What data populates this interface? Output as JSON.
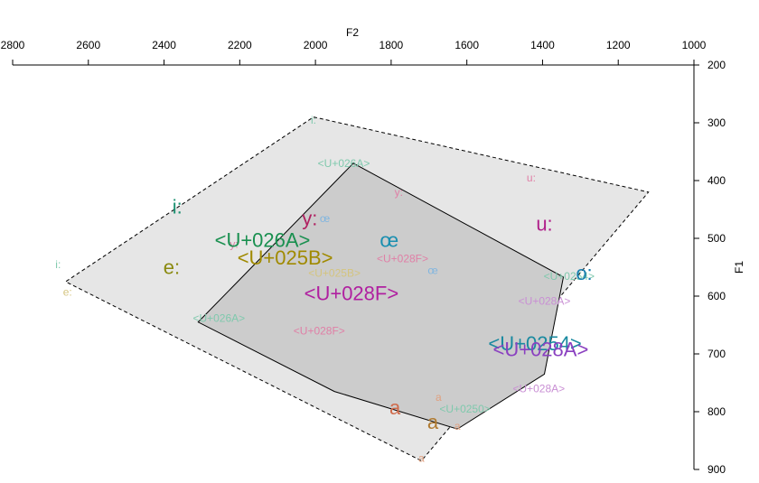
{
  "chart_data": {
    "type": "scatter",
    "title": "",
    "xlabel": "F2",
    "ylabel": "F1",
    "xaxis": {
      "reversed": true,
      "position": "top",
      "range": [
        2800,
        1000
      ],
      "ticks": [
        2800,
        2600,
        2400,
        2200,
        2000,
        1800,
        1600,
        1400,
        1200,
        1000
      ]
    },
    "yaxis": {
      "reversed": true,
      "position": "right",
      "range": [
        200,
        900
      ],
      "ticks": [
        200,
        300,
        400,
        500,
        600,
        700,
        800,
        900
      ]
    },
    "grid": false,
    "polygons": [
      {
        "name": "outer",
        "style": "dashed",
        "fill": "#e6e6e6",
        "stroke": "#000000",
        "points": [
          [
            2005,
            290
          ],
          [
            1120,
            420
          ],
          [
            1720,
            885
          ],
          [
            2660,
            575
          ]
        ]
      },
      {
        "name": "inner",
        "style": "solid",
        "fill": "#cccccc",
        "stroke": "#000000",
        "points": [
          [
            1900,
            370
          ],
          [
            1345,
            567
          ],
          [
            1395,
            735
          ],
          [
            1625,
            830
          ],
          [
            1950,
            765
          ],
          [
            2310,
            645
          ]
        ]
      }
    ],
    "points": [
      {
        "label": "i:",
        "f2": 2005,
        "f1": 295,
        "color": "#7fc9ad",
        "size": 12
      },
      {
        "label": "<U+026A>",
        "f2": 1925,
        "f1": 370,
        "color": "#7fc9ad",
        "size": 12
      },
      {
        "label": "y:",
        "f2": 1780,
        "f1": 420,
        "color": "#e07fa6",
        "size": 12
      },
      {
        "label": "u:",
        "f2": 1430,
        "f1": 395,
        "color": "#e07fa6",
        "size": 12
      },
      {
        "label": "œ",
        "f2": 1975,
        "f1": 465,
        "color": "#7fb5e0",
        "size": 12
      },
      {
        "label": "y:",
        "f2": 2215,
        "f1": 510,
        "color": "#e07fa6",
        "size": 12
      },
      {
        "label": "<U+028F>",
        "f2": 1770,
        "f1": 535,
        "color": "#e07fa6",
        "size": 12
      },
      {
        "label": "<U+025B>",
        "f2": 1950,
        "f1": 560,
        "color": "#d4c47f",
        "size": 12
      },
      {
        "label": "œ",
        "f2": 1690,
        "f1": 555,
        "color": "#7fb5e0",
        "size": 12
      },
      {
        "label": "i:",
        "f2": 2680,
        "f1": 545,
        "color": "#7fc9ad",
        "size": 12
      },
      {
        "label": "<U+0254>",
        "f2": 1330,
        "f1": 565,
        "color": "#7fc9ad",
        "size": 12
      },
      {
        "label": "e:",
        "f2": 2655,
        "f1": 593,
        "color": "#d4c47f",
        "size": 12
      },
      {
        "label": "<U+028A>",
        "f2": 1395,
        "f1": 608,
        "color": "#c98fd4",
        "size": 12
      },
      {
        "label": "<U+026A>",
        "f2": 2255,
        "f1": 638,
        "color": "#7fc9ad",
        "size": 12
      },
      {
        "label": "<U+028F>",
        "f2": 1990,
        "f1": 660,
        "color": "#e07fa6",
        "size": 12
      },
      {
        "label": "<U+028A>",
        "f2": 1410,
        "f1": 760,
        "color": "#c98fd4",
        "size": 12
      },
      {
        "label": "a",
        "f2": 1675,
        "f1": 775,
        "color": "#e0a07f",
        "size": 12
      },
      {
        "label": "<U+0250>",
        "f2": 1605,
        "f1": 795,
        "color": "#7fc9ad",
        "size": 12
      },
      {
        "label": "a",
        "f2": 1625,
        "f1": 825,
        "color": "#e0a07f",
        "size": 12
      },
      {
        "label": "a",
        "f2": 1720,
        "f1": 880,
        "color": "#e0a07f",
        "size": 12
      },
      {
        "label": "i:",
        "f2": 2365,
        "f1": 445,
        "color": "#1a9070",
        "size": 22
      },
      {
        "label": "y:",
        "f2": 2015,
        "f1": 465,
        "color": "#b02060",
        "size": 22
      },
      {
        "label": "u:",
        "f2": 1395,
        "f1": 475,
        "color": "#b0208a",
        "size": 22
      },
      {
        "label": "<U+026A>",
        "f2": 2140,
        "f1": 503,
        "color": "#1a9050",
        "size": 22
      },
      {
        "label": "œ",
        "f2": 1805,
        "f1": 503,
        "color": "#1a8fb0",
        "size": 22
      },
      {
        "label": "<U+025B>",
        "f2": 2080,
        "f1": 533,
        "color": "#a08a00",
        "size": 22
      },
      {
        "label": "e:",
        "f2": 2380,
        "f1": 550,
        "color": "#8a8a10",
        "size": 22
      },
      {
        "label": "o:",
        "f2": 1290,
        "f1": 560,
        "color": "#1a80b0",
        "size": 22
      },
      {
        "label": "<U+028F>",
        "f2": 1905,
        "f1": 595,
        "color": "#b020a0",
        "size": 22
      },
      {
        "label": "<U+0254>",
        "f2": 1420,
        "f1": 682,
        "color": "#1a8aa0",
        "size": 22
      },
      {
        "label": "<U+028A>",
        "f2": 1405,
        "f1": 692,
        "color": "#8a40c0",
        "size": 22
      },
      {
        "label": "a",
        "f2": 1790,
        "f1": 793,
        "color": "#d06a4a",
        "size": 22
      },
      {
        "label": "a",
        "f2": 1690,
        "f1": 818,
        "color": "#b07a30",
        "size": 22
      }
    ]
  }
}
